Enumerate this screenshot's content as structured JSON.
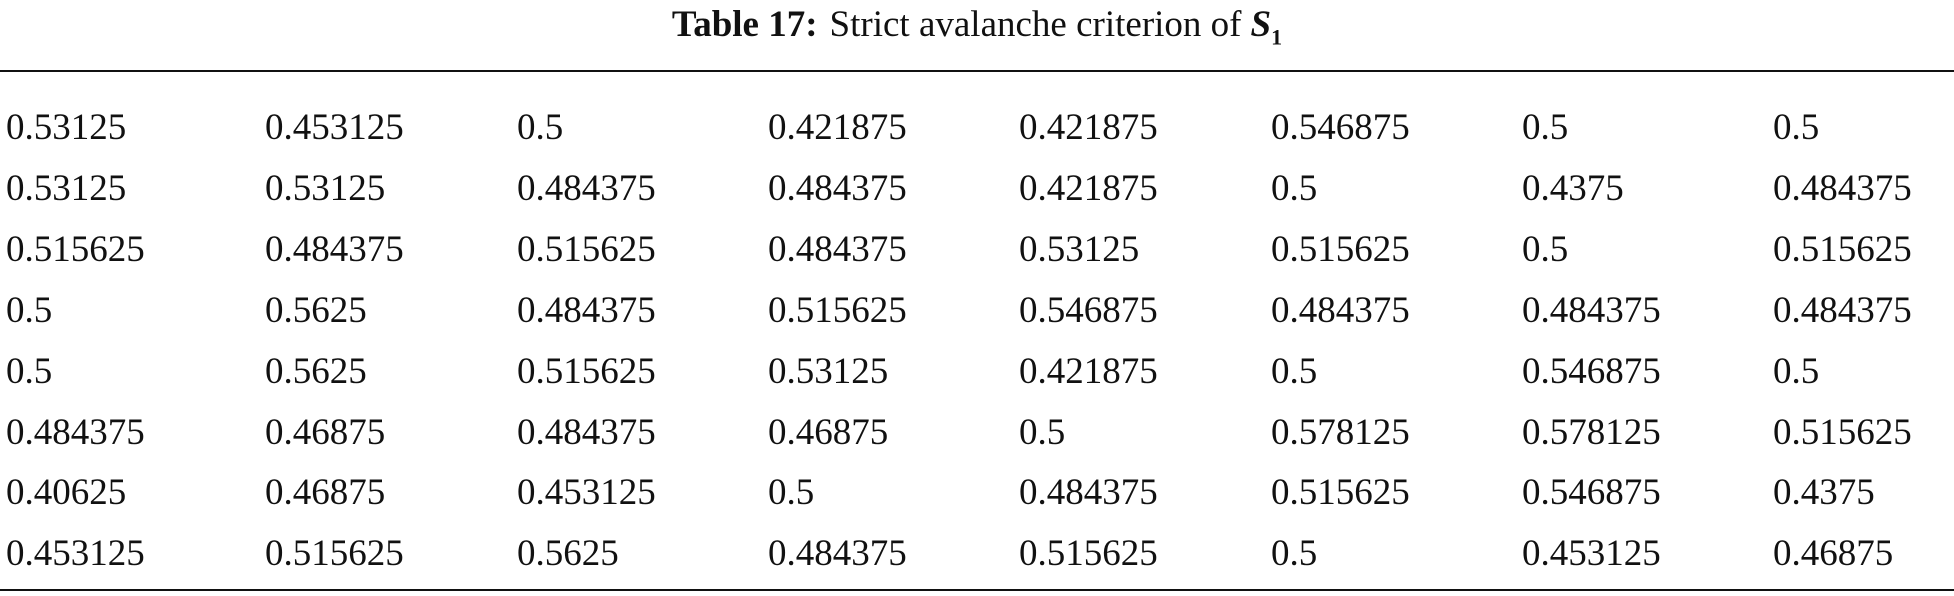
{
  "title": {
    "label": "Table 17:",
    "text": "Strict avalanche criterion of",
    "symbol": "S",
    "subscript": "1"
  },
  "table": {
    "rows": [
      [
        "0.53125",
        "0.453125",
        "0.5",
        "0.421875",
        "0.421875",
        "0.546875",
        "0.5",
        "0.5"
      ],
      [
        "0.53125",
        "0.53125",
        "0.484375",
        "0.484375",
        "0.421875",
        "0.5",
        "0.4375",
        "0.484375"
      ],
      [
        "0.515625",
        "0.484375",
        "0.515625",
        "0.484375",
        "0.53125",
        "0.515625",
        "0.5",
        "0.515625"
      ],
      [
        "0.5",
        "0.5625",
        "0.484375",
        "0.515625",
        "0.546875",
        "0.484375",
        "0.484375",
        "0.484375"
      ],
      [
        "0.5",
        "0.5625",
        "0.515625",
        "0.53125",
        "0.421875",
        "0.5",
        "0.546875",
        "0.5"
      ],
      [
        "0.484375",
        "0.46875",
        "0.484375",
        "0.46875",
        "0.5",
        "0.578125",
        "0.578125",
        "0.515625"
      ],
      [
        "0.40625",
        "0.46875",
        "0.453125",
        "0.5",
        "0.484375",
        "0.515625",
        "0.546875",
        "0.4375"
      ],
      [
        "0.453125",
        "0.515625",
        "0.5625",
        "0.484375",
        "0.515625",
        "0.5",
        "0.453125",
        "0.46875"
      ]
    ]
  }
}
